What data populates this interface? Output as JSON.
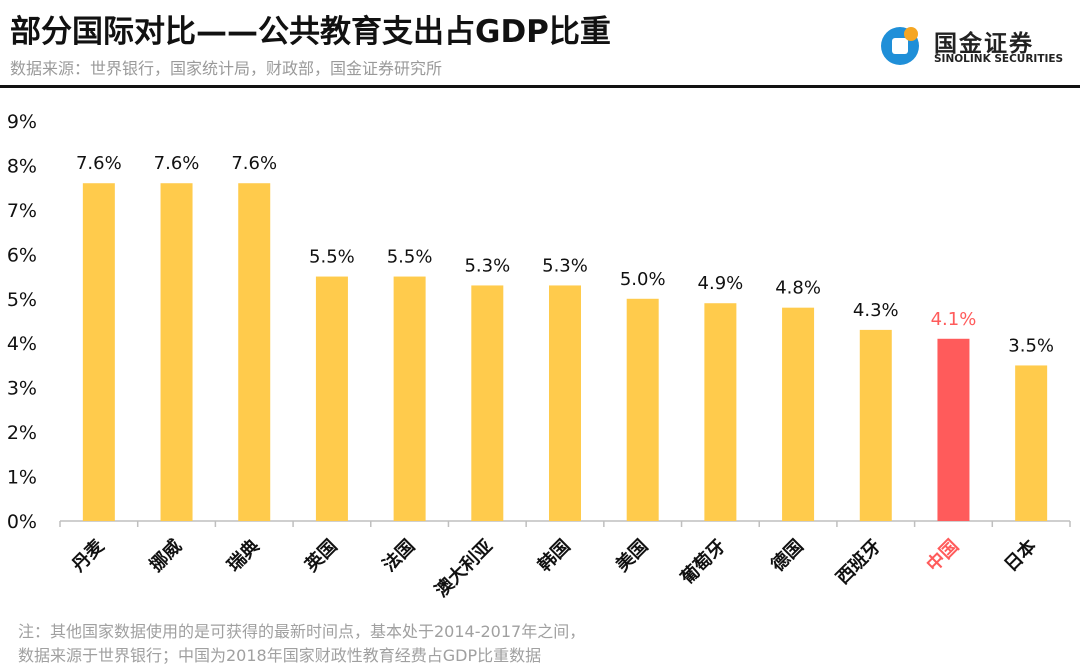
{
  "header": {
    "title": "部分国际对比——公共教育支出占GDP比重",
    "subtitle": "数据来源：世界银行，国家统计局，财政部，国金证券研究所",
    "logo_cn": "国金证券",
    "logo_en": "SINOLINK SECURITIES"
  },
  "note": {
    "line1": "注：其他国家数据使用的是可获得的最新时间点，基本处于2014-2017年之间，",
    "line2": "数据来源于世界银行；中国为2018年国家财政性教育经费占GDP比重数据"
  },
  "colors": {
    "bar": "#FFCB4C",
    "highlight": "#FF5B5B",
    "axis": "#bfbfbf"
  },
  "chart_data": {
    "type": "bar",
    "title": "部分国际对比——公共教育支出占GDP比重",
    "categories": [
      "丹麦",
      "挪威",
      "瑞典",
      "英国",
      "法国",
      "澳大利亚",
      "韩国",
      "美国",
      "葡萄牙",
      "德国",
      "西班牙",
      "中国",
      "日本"
    ],
    "values": [
      7.6,
      7.6,
      7.6,
      5.5,
      5.5,
      5.3,
      5.3,
      5.0,
      4.9,
      4.8,
      4.3,
      4.1,
      3.5
    ],
    "data_labels": [
      "7.6%",
      "7.6%",
      "7.6%",
      "5.5%",
      "5.5%",
      "5.3%",
      "5.3%",
      "5.0%",
      "4.9%",
      "4.8%",
      "4.3%",
      "4.1%",
      "3.5%"
    ],
    "highlight": "中国",
    "yticks": [
      "0%",
      "1%",
      "2%",
      "3%",
      "4%",
      "5%",
      "6%",
      "7%",
      "8%",
      "9%"
    ],
    "ylim": [
      0,
      9
    ],
    "ylabel": "",
    "xlabel": "",
    "grid": false,
    "legend": "none"
  }
}
